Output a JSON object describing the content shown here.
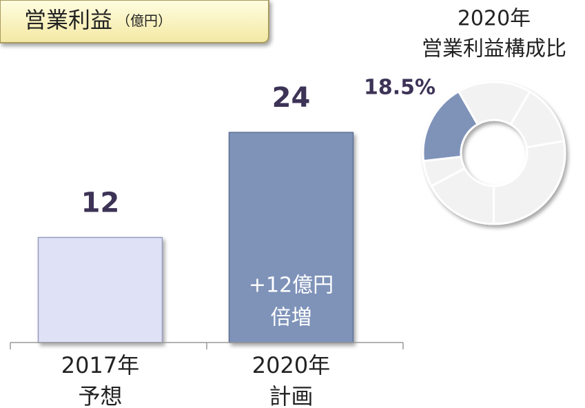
{
  "chart_data": [
    {
      "type": "bar",
      "title": "営業利益",
      "unit": "（億円）",
      "categories": [
        [
          "2017年",
          "予想"
        ],
        [
          "2020年",
          "計画"
        ]
      ],
      "values": [
        12,
        24
      ],
      "colors": [
        "#dfe2f6",
        "#7f93b9"
      ],
      "ylim": [
        0,
        27
      ],
      "annotation": [
        "+12億円",
        "倍増"
      ]
    },
    {
      "type": "donut",
      "title": [
        "2020年",
        "営業利益構成比"
      ],
      "values": [
        18.5,
        16.7,
        13.9,
        27.8,
        17.2,
        5.9
      ],
      "value_labels": [
        "18.5%",
        null,
        null,
        null,
        null,
        null
      ],
      "colors": [
        "#7f93b9",
        "#f2f2f2",
        "#f2f2f2",
        "#f2f2f2",
        "#f2f2f2",
        "#f2f2f2"
      ]
    }
  ]
}
